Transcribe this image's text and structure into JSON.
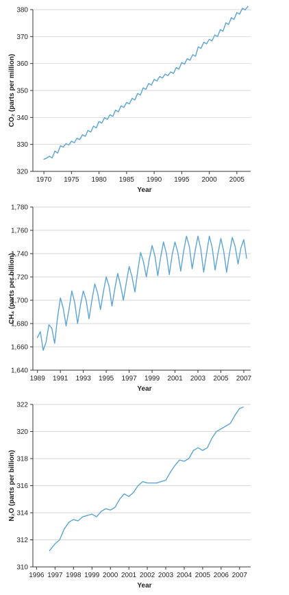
{
  "chart_data": [
    {
      "type": "line",
      "xlabel": "Year",
      "ylabel": "CO₂ (parts per million)",
      "xlim": [
        1968,
        2007.5
      ],
      "ylim": [
        320,
        380
      ],
      "xticks": [
        1970,
        1975,
        1980,
        1985,
        1990,
        1995,
        2000,
        2005
      ],
      "xtick_labels": [
        "1970",
        "1975",
        "1980",
        "1985",
        "1990",
        "1995",
        "2000",
        "2005"
      ],
      "yticks": [
        320,
        330,
        340,
        350,
        360,
        370,
        380
      ],
      "ytick_labels": [
        "320",
        "330",
        "340",
        "350",
        "360",
        "370",
        "380"
      ],
      "grid": "horizontal",
      "color": "#5aa4d6",
      "series": [
        {
          "x": [
            1970,
            1970.5,
            1971,
            1971.5,
            1972,
            1972.5,
            1973,
            1973.5,
            1974,
            1974.5,
            1975,
            1975.5,
            1976,
            1976.5,
            1977,
            1977.5,
            1978,
            1978.5,
            1979,
            1979.5,
            1980,
            1980.5,
            1981,
            1981.5,
            1982,
            1982.5,
            1983,
            1983.5,
            1984,
            1984.5,
            1985,
            1985.5,
            1986,
            1986.5,
            1987,
            1987.5,
            1988,
            1988.5,
            1989,
            1989.5,
            1990,
            1990.5,
            1991,
            1991.5,
            1992,
            1992.5,
            1993,
            1993.5,
            1994,
            1994.5,
            1995,
            1995.5,
            1996,
            1996.5,
            1997,
            1997.5,
            1998,
            1998.5,
            1999,
            1999.5,
            2000,
            2000.5,
            2001,
            2001.5,
            2002,
            2002.5,
            2003,
            2003.5,
            2004,
            2004.5,
            2005,
            2005.5,
            2006,
            2006.5,
            2007
          ],
          "y": [
            324.5,
            324.9,
            325.6,
            325.0,
            327.5,
            326.8,
            329.5,
            329.0,
            330.3,
            329.8,
            331.2,
            330.6,
            332.3,
            331.8,
            333.6,
            333.0,
            335.2,
            334.6,
            336.8,
            336.1,
            338.5,
            337.9,
            339.9,
            339.3,
            341.0,
            340.4,
            342.7,
            342.1,
            344.3,
            343.7,
            345.6,
            345.0,
            347.1,
            346.5,
            348.9,
            348.3,
            351.0,
            350.4,
            352.6,
            352.0,
            354.1,
            353.5,
            355.2,
            354.6,
            356.1,
            355.5,
            356.9,
            356.3,
            358.5,
            357.9,
            360.4,
            359.8,
            361.8,
            361.2,
            363.3,
            362.7,
            366.2,
            365.6,
            367.9,
            367.3,
            369.0,
            368.4,
            370.6,
            370.0,
            372.6,
            372.0,
            375.1,
            374.5,
            377.0,
            376.4,
            378.9,
            378.3,
            380.5,
            379.9,
            381.2
          ]
        }
      ]
    },
    {
      "type": "line",
      "xlabel": "Year",
      "ylabel": "CH₄ (parts per billion)",
      "xlim": [
        1988.6,
        2007.6
      ],
      "ylim": [
        1640,
        1780
      ],
      "xticks": [
        1989,
        1991,
        1993,
        1995,
        1997,
        1999,
        2001,
        2003,
        2005,
        2007
      ],
      "xtick_labels": [
        "1989",
        "1991",
        "1993",
        "1995",
        "1997",
        "1999",
        "2001",
        "2003",
        "2005",
        "2007"
      ],
      "yticks": [
        1640,
        1660,
        1680,
        1700,
        1720,
        1740,
        1760,
        1780
      ],
      "ytick_labels": [
        "1,640",
        "1,660",
        "1,680",
        "1,700",
        "1,720",
        "1,740",
        "1,760",
        "1,780"
      ],
      "grid": "horizontal",
      "color": "#5aa4d6",
      "series": [
        {
          "x": [
            1989.0,
            1989.25,
            1989.5,
            1989.75,
            1990.0,
            1990.25,
            1990.5,
            1990.75,
            1991.0,
            1991.25,
            1991.5,
            1991.75,
            1992.0,
            1992.25,
            1992.5,
            1992.75,
            1993.0,
            1993.25,
            1993.5,
            1993.75,
            1994.0,
            1994.25,
            1994.5,
            1994.75,
            1995.0,
            1995.25,
            1995.5,
            1995.75,
            1996.0,
            1996.25,
            1996.5,
            1996.75,
            1997.0,
            1997.25,
            1997.5,
            1997.75,
            1998.0,
            1998.25,
            1998.5,
            1998.75,
            1999.0,
            1999.25,
            1999.5,
            1999.75,
            2000.0,
            2000.25,
            2000.5,
            2000.75,
            2001.0,
            2001.25,
            2001.5,
            2001.75,
            2002.0,
            2002.25,
            2002.5,
            2002.75,
            2003.0,
            2003.25,
            2003.5,
            2003.75,
            2004.0,
            2004.25,
            2004.5,
            2004.75,
            2005.0,
            2005.25,
            2005.5,
            2005.75,
            2006.0,
            2006.25,
            2006.5,
            2006.75,
            2007.0,
            2007.25
          ],
          "y": [
            1668,
            1673,
            1657,
            1664,
            1679,
            1676,
            1663,
            1685,
            1702,
            1693,
            1678,
            1692,
            1708,
            1698,
            1680,
            1696,
            1708,
            1700,
            1684,
            1700,
            1714,
            1706,
            1692,
            1707,
            1720,
            1712,
            1695,
            1710,
            1723,
            1713,
            1700,
            1715,
            1729,
            1720,
            1707,
            1725,
            1741,
            1733,
            1720,
            1735,
            1747,
            1738,
            1721,
            1737,
            1750,
            1740,
            1722,
            1739,
            1750,
            1741,
            1725,
            1742,
            1755,
            1746,
            1727,
            1742,
            1755,
            1744,
            1724,
            1740,
            1755,
            1745,
            1726,
            1740,
            1753,
            1742,
            1724,
            1740,
            1754,
            1746,
            1731,
            1745,
            1752,
            1736
          ]
        }
      ]
    },
    {
      "type": "line",
      "xlabel": "Year",
      "ylabel": "N₂O (parts per billion)",
      "xlim": [
        1995.8,
        2007.6
      ],
      "ylim": [
        310,
        322
      ],
      "xticks": [
        1996,
        1997,
        1998,
        1999,
        2000,
        2001,
        2002,
        2003,
        2004,
        2005,
        2006,
        2007
      ],
      "xtick_labels": [
        "1996",
        "1997",
        "1998",
        "1999",
        "2000",
        "2001",
        "2002",
        "2003",
        "2004",
        "2005",
        "2006",
        "2007"
      ],
      "yticks": [
        310,
        312,
        314,
        316,
        318,
        320,
        322
      ],
      "ytick_labels": [
        "310",
        "312",
        "314",
        "316",
        "318",
        "320",
        "322"
      ],
      "grid": "horizontal",
      "color": "#5aa4d6",
      "series": [
        {
          "x": [
            1996.7,
            1997.0,
            1997.25,
            1997.5,
            1997.75,
            1998.0,
            1998.25,
            1998.5,
            1998.75,
            1999.0,
            1999.25,
            1999.5,
            1999.75,
            2000.0,
            2000.25,
            2000.5,
            2000.75,
            2001.0,
            2001.25,
            2001.5,
            2001.75,
            2002.0,
            2002.25,
            2002.5,
            2002.75,
            2003.0,
            2003.25,
            2003.5,
            2003.75,
            2004.0,
            2004.25,
            2004.5,
            2004.75,
            2005.0,
            2005.25,
            2005.5,
            2005.75,
            2006.0,
            2006.25,
            2006.5,
            2006.75,
            2007.0,
            2007.2
          ],
          "y": [
            311.2,
            311.7,
            312.0,
            312.8,
            313.3,
            313.5,
            313.4,
            313.7,
            313.8,
            313.9,
            313.7,
            314.1,
            314.3,
            314.2,
            314.4,
            315.0,
            315.4,
            315.2,
            315.5,
            316.0,
            316.3,
            316.2,
            316.2,
            316.2,
            316.3,
            316.4,
            317.0,
            317.5,
            317.9,
            317.8,
            318.0,
            318.6,
            318.8,
            318.6,
            318.8,
            319.5,
            320.0,
            320.2,
            320.4,
            320.6,
            321.2,
            321.7,
            321.8
          ]
        }
      ]
    }
  ]
}
